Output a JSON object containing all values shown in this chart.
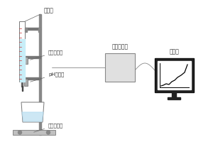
{
  "bg_color": "#ffffff",
  "text_color": "#333333",
  "label_titration_tube": "滴定管",
  "label_drop_sensor": "滴数传感器",
  "label_ph_sensor": "pH传感器",
  "label_stirrer": "磁力搅拌器",
  "label_data_collector": "数据采集器",
  "label_computer": "计算机",
  "stand_color": "#888888",
  "burette_fill_color": "#c8eef8",
  "burette_scale_color": "#cc3333",
  "beaker_color": "#b8ddf0",
  "box_color": "#e0e0e0",
  "monitor_dark": "#222222",
  "monitor_stand": "#444444"
}
